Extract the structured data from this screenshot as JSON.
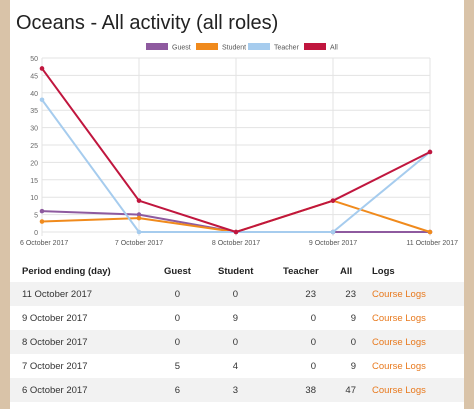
{
  "page": {
    "title": "Oceans - All activity (all roles)"
  },
  "chart_data": {
    "type": "line",
    "x": [
      "6 October 2017",
      "7 October 2017",
      "8 October 2017",
      "9 October 2017",
      "11 October 2017"
    ],
    "ylim": [
      0,
      50
    ],
    "yticks": [
      "0",
      "5",
      "10",
      "15",
      "20",
      "25",
      "30",
      "35",
      "40",
      "45",
      "50"
    ],
    "grid": true,
    "legend_position": "top",
    "series": [
      {
        "name": "Guest",
        "color": "#8e5a9f",
        "values": [
          6,
          5,
          0,
          0,
          0
        ]
      },
      {
        "name": "Student",
        "color": "#f08a1c",
        "values": [
          3,
          4,
          0,
          9,
          0
        ]
      },
      {
        "name": "Teacher",
        "color": "#a6ccee",
        "values": [
          38,
          0,
          0,
          0,
          23
        ]
      },
      {
        "name": "All",
        "color": "#c0163e",
        "values": [
          47,
          9,
          0,
          9,
          23
        ]
      }
    ]
  },
  "table": {
    "headers": {
      "period": "Period ending (day)",
      "guest": "Guest",
      "student": "Student",
      "teacher": "Teacher",
      "all": "All",
      "logs": "Logs"
    },
    "rows": [
      {
        "period": "11 October 2017",
        "guest": "0",
        "student": "0",
        "teacher": "23",
        "all": "23",
        "logs": "Course Logs"
      },
      {
        "period": "9 October 2017",
        "guest": "0",
        "student": "9",
        "teacher": "0",
        "all": "9",
        "logs": "Course Logs"
      },
      {
        "period": "8 October 2017",
        "guest": "0",
        "student": "0",
        "teacher": "0",
        "all": "0",
        "logs": "Course Logs"
      },
      {
        "period": "7 October 2017",
        "guest": "5",
        "student": "4",
        "teacher": "0",
        "all": "9",
        "logs": "Course Logs"
      },
      {
        "period": "6 October 2017",
        "guest": "6",
        "student": "3",
        "teacher": "38",
        "all": "47",
        "logs": "Course Logs"
      }
    ]
  }
}
